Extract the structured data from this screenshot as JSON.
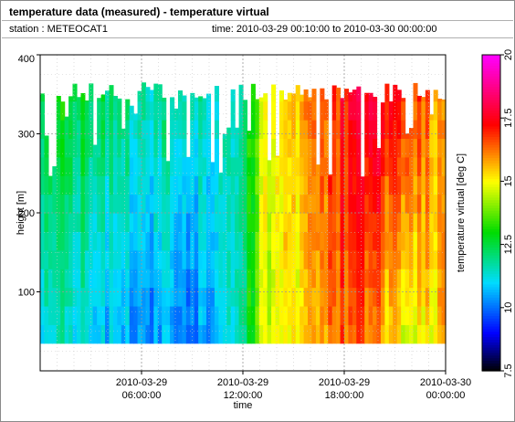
{
  "header": {
    "title": "temperature data (measured) - temperature virtual",
    "station": "station : METEOCAT1",
    "time_range": "time: 2010-03-29 00:10:00 to 2010-03-30 00:00:00"
  },
  "chart_data": {
    "type": "heatmap",
    "title": "temperature data (measured) - temperature virtual",
    "xlabel": "time",
    "ylabel": "height [m]",
    "colorbar_label": "temperature virtual [deg C]",
    "xlim_hours": [
      0,
      24
    ],
    "ylim": [
      0,
      400
    ],
    "x_ticks": [
      {
        "hour": 6,
        "line1": "2010-03-29",
        "line2": "06:00:00"
      },
      {
        "hour": 12,
        "line1": "2010-03-29",
        "line2": "12:00:00"
      },
      {
        "hour": 18,
        "line1": "2010-03-29",
        "line2": "18:00:00"
      },
      {
        "hour": 24,
        "line1": "2010-03-30",
        "line2": "00:00:00"
      }
    ],
    "y_ticks": [
      100,
      200,
      300,
      400
    ],
    "colorbar": {
      "min": 7.5,
      "max": 20,
      "ticks": [
        7.5,
        10,
        12.5,
        15,
        17.5,
        20
      ]
    },
    "data_height_range": [
      35,
      365
    ],
    "series": [
      {
        "name": "temperature virtual",
        "hours": [
          0,
          3,
          6,
          9,
          12,
          13,
          15,
          18,
          20,
          22,
          24
        ],
        "temp_low_levels": [
          11.5,
          11.0,
          10.5,
          10.0,
          11.5,
          14.5,
          15.0,
          16.5,
          16.0,
          14.5,
          15.5
        ],
        "temp_high_levels": [
          13.0,
          12.5,
          12.0,
          11.5,
          11.5,
          14.5,
          15.5,
          17.5,
          18.0,
          17.0,
          15.5
        ]
      }
    ]
  }
}
